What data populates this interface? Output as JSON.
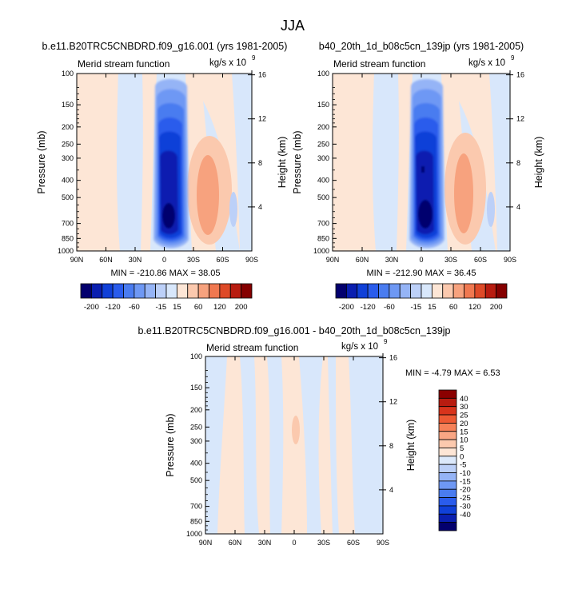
{
  "figure": {
    "title": "JJA"
  },
  "chart_data": [
    {
      "type": "heatmap",
      "title": "b.e11.B20TRC5CNBDRD.f09_g16.001 (yrs 1981-2005)",
      "subtitle_left": "Merid stream function",
      "units": "kg/s x 10",
      "units_exp": "9",
      "xlabel": "",
      "ylabel": "Pressure (mb)",
      "ylabel_right": "Height (km)",
      "x_ticks": [
        "90N",
        "60N",
        "30N",
        "0",
        "30S",
        "60S",
        "90S"
      ],
      "y_ticks": [
        "100",
        "150",
        "200",
        "250",
        "300",
        "400",
        "500",
        "700",
        "850",
        "1000"
      ],
      "y_right_ticks": [
        "16",
        "12",
        "8",
        "4"
      ],
      "stats": "MIN = -210.86  MAX = 38.05",
      "colorbar_labels": [
        "-200",
        "-120",
        "-60",
        "-15",
        "15",
        "60",
        "120",
        "200"
      ]
    },
    {
      "type": "heatmap",
      "title": "b40_20th_1d_b08c5cn_139jp (yrs 1981-2005)",
      "subtitle_left": "Merid stream function",
      "units": "kg/s x 10",
      "units_exp": "9",
      "xlabel": "",
      "ylabel": "Pressure (mb)",
      "ylabel_right": "Height (km)",
      "x_ticks": [
        "90N",
        "60N",
        "30N",
        "0",
        "30S",
        "60S",
        "90S"
      ],
      "y_ticks": [
        "100",
        "150",
        "200",
        "250",
        "300",
        "400",
        "500",
        "700",
        "850",
        "1000"
      ],
      "y_right_ticks": [
        "16",
        "12",
        "8",
        "4"
      ],
      "stats": "MIN = -212.90  MAX = 36.45",
      "colorbar_labels": [
        "-200",
        "-120",
        "-60",
        "-15",
        "15",
        "60",
        "120",
        "200"
      ]
    },
    {
      "type": "heatmap",
      "title": "b.e11.B20TRC5CNBDRD.f09_g16.001 - b40_20th_1d_b08c5cn_139jp",
      "subtitle_left": "Merid stream function",
      "units": "kg/s x 10",
      "units_exp": "9",
      "xlabel": "",
      "ylabel": "Pressure (mb)",
      "ylabel_right": "Height (km)",
      "x_ticks": [
        "90N",
        "60N",
        "30N",
        "0",
        "30S",
        "60S",
        "90S"
      ],
      "y_ticks": [
        "100",
        "150",
        "200",
        "250",
        "300",
        "400",
        "500",
        "700",
        "850",
        "1000"
      ],
      "y_right_ticks": [
        "16",
        "12",
        "8",
        "4"
      ],
      "stats": "MIN = -4.79  MAX =  6.53",
      "colorbar_labels": [
        "40",
        "30",
        "25",
        "20",
        "15",
        "10",
        "5",
        "0",
        "-5",
        "-10",
        "-15",
        "-20",
        "-25",
        "-30",
        "-40"
      ]
    }
  ],
  "colors": {
    "neg": [
      "#03006e",
      "#0a1fb0",
      "#1040d8",
      "#2a5cec",
      "#4a7cf0",
      "#6e98f4",
      "#95b4f6",
      "#bcd0f8",
      "#d8e7fb"
    ],
    "pos": [
      "#fde6d6",
      "#fbc9ae",
      "#f7a27e",
      "#f07850",
      "#de4a28",
      "#b81c10",
      "#850000"
    ],
    "diff_bar": [
      "#8b0000",
      "#b81c10",
      "#d8341c",
      "#ed5a34",
      "#f68158",
      "#f9a684",
      "#fbc9ae",
      "#fde6d6",
      "#dce9fb",
      "#bcd0f8",
      "#95b4f6",
      "#6e98f4",
      "#4a7cf0",
      "#2a5cec",
      "#1040d8",
      "#0a1fb0",
      "#03006e"
    ]
  }
}
